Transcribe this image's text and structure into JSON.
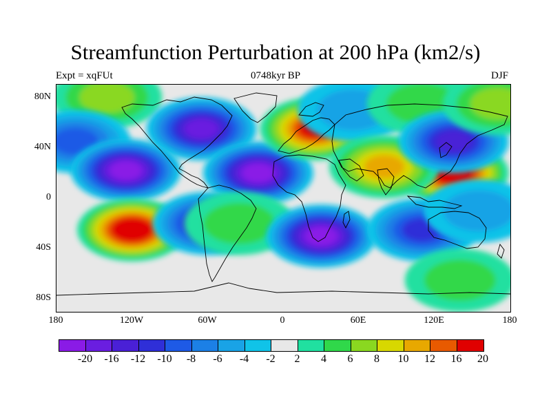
{
  "title": "Streamfunction Perturbation at 200 hPa (km2/s)",
  "subtitle_left": "Expt = xqFUt",
  "subtitle_center": "0748kyr BP",
  "subtitle_right": "DJF",
  "chart_data": {
    "type": "heatmap",
    "projection": "cylindrical-equidistant",
    "variable": "Streamfunction perturbation",
    "level": "200 hPa",
    "units": "km2/s",
    "lon_range": [
      -180,
      180
    ],
    "lat_range": [
      -90,
      90
    ],
    "lat_ticks": [
      {
        "value": 80,
        "label": "80N"
      },
      {
        "value": 40,
        "label": "40N"
      },
      {
        "value": 0,
        "label": "0"
      },
      {
        "value": -40,
        "label": "40S"
      },
      {
        "value": -80,
        "label": "80S"
      }
    ],
    "lon_ticks": [
      {
        "value": -180,
        "label": "180"
      },
      {
        "value": -120,
        "label": "120W"
      },
      {
        "value": -60,
        "label": "60W"
      },
      {
        "value": 0,
        "label": "0"
      },
      {
        "value": 60,
        "label": "60E"
      },
      {
        "value": 120,
        "label": "120E"
      },
      {
        "value": 180,
        "label": "180"
      }
    ],
    "contour_levels": [
      -20,
      -16,
      -12,
      -10,
      -8,
      -6,
      -4,
      -2,
      2,
      4,
      6,
      8,
      10,
      12,
      16,
      20
    ],
    "colorbar_labels": [
      "-20",
      "-16",
      "-12",
      "-10",
      "-8",
      "-6",
      "-4",
      "-2",
      "2",
      "4",
      "6",
      "8",
      "10",
      "12",
      "16",
      "20"
    ],
    "colorbar_colors": [
      "#8a1be6",
      "#6a1ee0",
      "#4a20d6",
      "#2f2fd8",
      "#1e5ae6",
      "#1c80e6",
      "#19a3e6",
      "#10c3e8",
      "#e8e8e8",
      "#20e0a0",
      "#30d84a",
      "#8ad820",
      "#d8d800",
      "#e8a800",
      "#e85a00",
      "#e00000"
    ],
    "anomaly_centers": [
      {
        "lon": -140,
        "lat": 80,
        "value": 6
      },
      {
        "lon": -165,
        "lat": 45,
        "value": -8
      },
      {
        "lon": -65,
        "lat": 55,
        "value": -16
      },
      {
        "lon": -125,
        "lat": 22,
        "value": -20
      },
      {
        "lon": -20,
        "lat": 20,
        "value": -20
      },
      {
        "lon": 25,
        "lat": 55,
        "value": 16
      },
      {
        "lon": 55,
        "lat": 70,
        "value": -4
      },
      {
        "lon": 110,
        "lat": 75,
        "value": 4
      },
      {
        "lon": 135,
        "lat": 20,
        "value": 20
      },
      {
        "lon": 80,
        "lat": 25,
        "value": 10
      },
      {
        "lon": 135,
        "lat": 45,
        "value": -12
      },
      {
        "lon": 170,
        "lat": 75,
        "value": 6
      },
      {
        "lon": -120,
        "lat": -25,
        "value": 20
      },
      {
        "lon": -60,
        "lat": -20,
        "value": -12
      },
      {
        "lon": -35,
        "lat": -20,
        "value": 4
      },
      {
        "lon": 30,
        "lat": -30,
        "value": -20
      },
      {
        "lon": 110,
        "lat": -25,
        "value": -10
      },
      {
        "lon": 140,
        "lat": -65,
        "value": 4
      },
      {
        "lon": 155,
        "lat": -10,
        "value": -4
      }
    ]
  }
}
